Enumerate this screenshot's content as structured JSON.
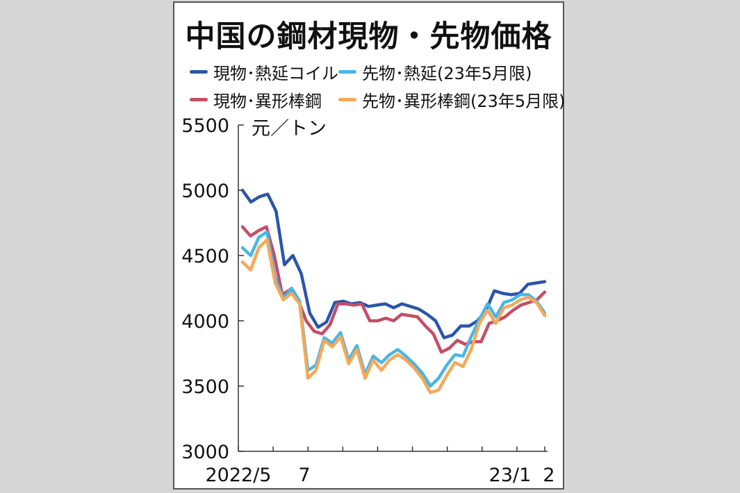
{
  "chart_data": {
    "type": "line",
    "title": "中国の鋼材現物・先物価格",
    "unit_label": "元／トン",
    "ylim": [
      3000,
      5500
    ],
    "y_ticks": [
      "5500",
      "5000",
      "4500",
      "4000",
      "3500",
      "3000"
    ],
    "x_tick_labels": [
      "2022/5",
      "7",
      "23/1",
      "2"
    ],
    "x_range": [
      0,
      44
    ],
    "x_ticks_minor": [
      0,
      5,
      10,
      15,
      20,
      25,
      30,
      35,
      40,
      44
    ],
    "legend_placement": "top",
    "grid": false,
    "series": [
      {
        "name": "現物･熱延コイル",
        "color": "#2b55a8",
        "values": [
          5000,
          4910,
          4950,
          4970,
          4840,
          4430,
          4500,
          4360,
          4060,
          3950,
          3990,
          4140,
          4150,
          4130,
          4140,
          4110,
          4120,
          4130,
          4100,
          4130,
          4110,
          4090,
          4050,
          4000,
          3870,
          3890,
          3960,
          3960,
          4000,
          4080,
          4230,
          4210,
          4200,
          4210,
          4280,
          4290,
          4300
        ]
      },
      {
        "name": "現物･異形棒鋼",
        "color": "#c54d65",
        "values": [
          4720,
          4650,
          4690,
          4720,
          4500,
          4200,
          4240,
          4160,
          4000,
          3920,
          3900,
          3970,
          4130,
          4130,
          4120,
          4130,
          4000,
          4000,
          4020,
          4000,
          4050,
          4040,
          4030,
          3960,
          3900,
          3760,
          3790,
          3850,
          3820,
          3840,
          3840,
          3980,
          4000,
          4030,
          4080,
          4120,
          4140,
          4160,
          4220
        ]
      },
      {
        "name": "先物･熱延(23年5月限)",
        "color": "#49b6e6",
        "values": [
          4560,
          4500,
          4640,
          4680,
          4330,
          4170,
          4250,
          4150,
          3620,
          3660,
          3870,
          3830,
          3910,
          3700,
          3810,
          3590,
          3730,
          3680,
          3740,
          3780,
          3730,
          3670,
          3600,
          3500,
          3560,
          3660,
          3740,
          3730,
          3880,
          4010,
          4130,
          4030,
          4140,
          4160,
          4200,
          4200,
          4150,
          4060
        ]
      },
      {
        "name": "先物･異形棒鋼(23年5月限)",
        "color": "#f5a85a",
        "values": [
          4450,
          4390,
          4560,
          4620,
          4290,
          4160,
          4210,
          4130,
          3560,
          3620,
          3850,
          3800,
          3880,
          3670,
          3780,
          3560,
          3700,
          3620,
          3700,
          3740,
          3700,
          3640,
          3560,
          3450,
          3470,
          3580,
          3680,
          3650,
          3780,
          3980,
          4080,
          3980,
          4100,
          4120,
          4160,
          4180,
          4140,
          4040
        ]
      }
    ]
  }
}
